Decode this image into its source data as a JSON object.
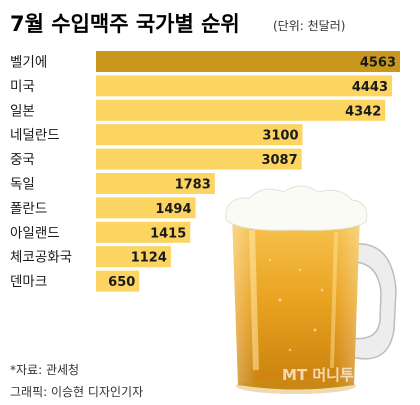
{
  "chart_data": {
    "type": "bar",
    "orientation": "horizontal",
    "title": "7월 수입맥주 국가별 순위",
    "unit": "(단위: 천달러)",
    "categories": [
      "벨기에",
      "미국",
      "일본",
      "네덜란드",
      "중국",
      "독일",
      "폴란드",
      "아일랜드",
      "체코공화국",
      "덴마크"
    ],
    "values": [
      4563,
      4443,
      4342,
      3100,
      3087,
      1783,
      1494,
      1415,
      1124,
      650
    ],
    "highlight_index": 0,
    "xlim": [
      0,
      4563
    ],
    "grid": false,
    "legend": "none"
  },
  "colors": {
    "highlight_bar": "#C9961E",
    "bar": "#FCD462",
    "background": "#FFFFFF"
  },
  "notes": {
    "source": "*자료: 관세청",
    "credit": "그래픽: 이승현 디자인기자"
  },
  "watermark": "MT 머니투데이"
}
